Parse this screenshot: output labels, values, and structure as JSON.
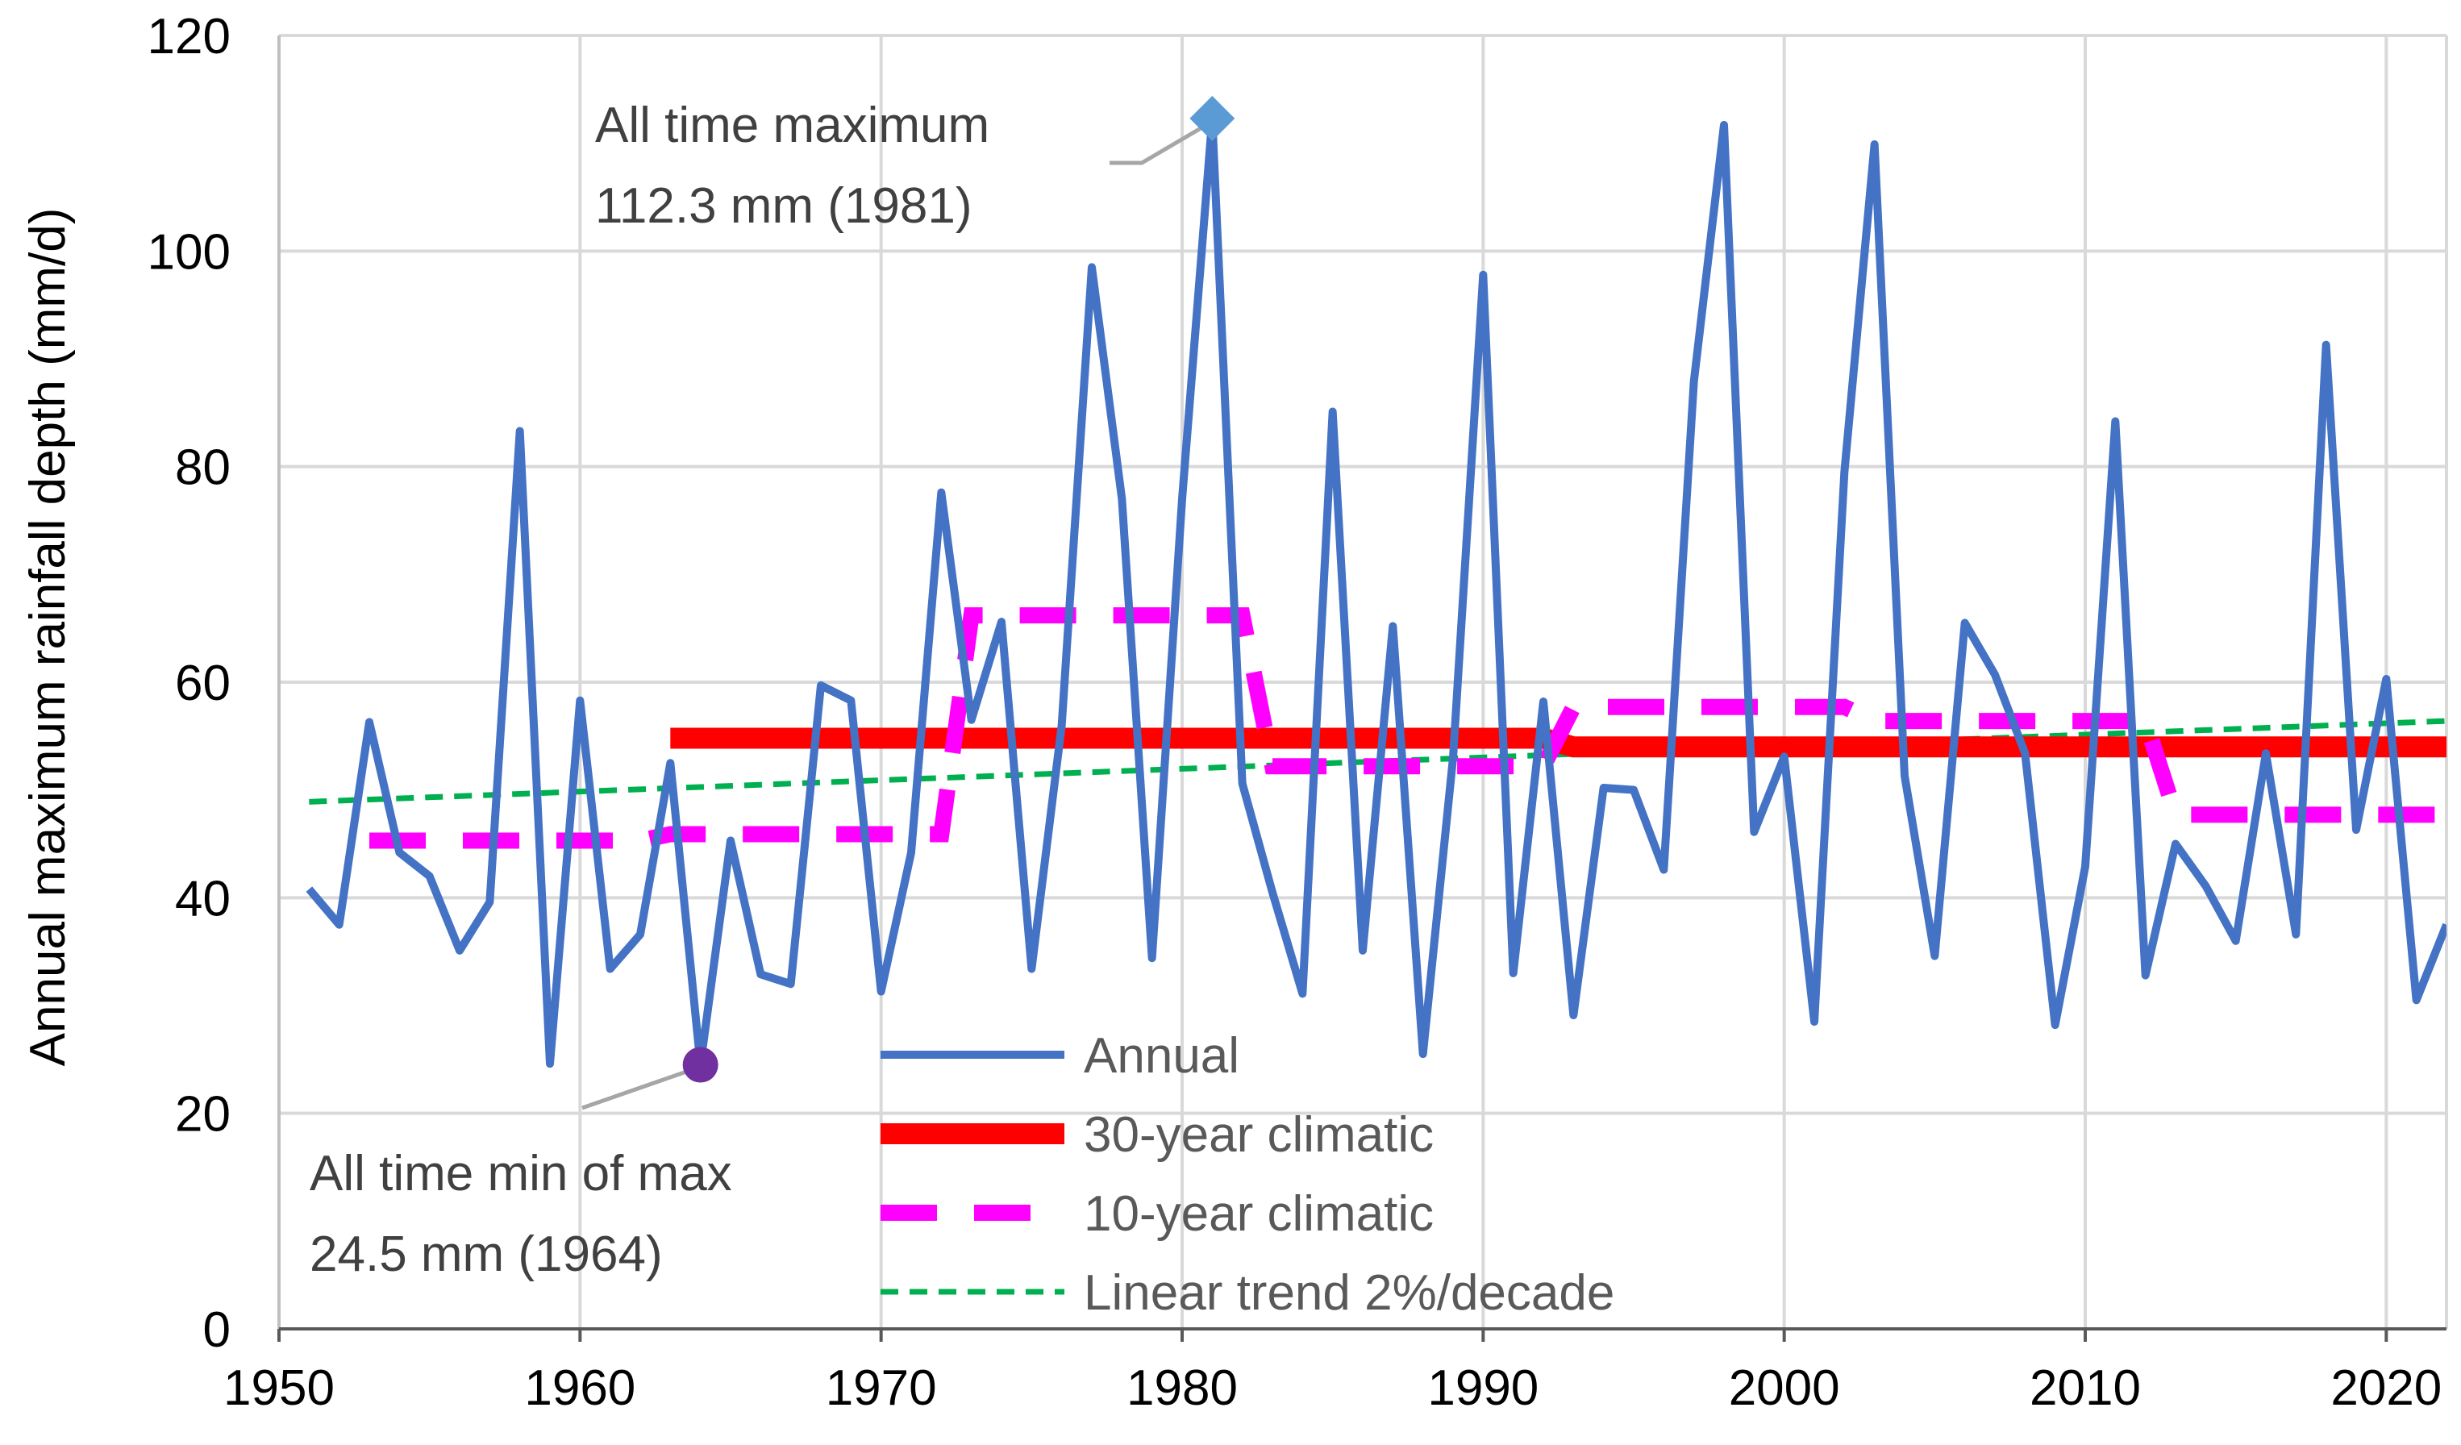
{
  "chart_data": {
    "type": "line",
    "title": "",
    "xlabel": "",
    "ylabel": "Annual maximum  rainfall depth (mm/d)",
    "xlim": [
      1950,
      2022
    ],
    "ylim": [
      0,
      120
    ],
    "x_ticks": [
      "1950",
      "1960",
      "1970",
      "1980",
      "1990",
      "2000",
      "2010",
      "2020"
    ],
    "y_ticks": [
      "0",
      "20",
      "40",
      "60",
      "80",
      "100",
      "120"
    ],
    "grid": true,
    "legend_position": "bottom-center",
    "colors": {
      "annual": "#4472C4",
      "climatic30": "#FF0000",
      "climatic10": "#FF00FF",
      "trend": "#00B050",
      "max_marker": "#5B9BD5",
      "min_marker": "#7030A0",
      "grid": "#D9D9D9",
      "leader": "#A6A6A6"
    },
    "series": [
      {
        "name": "Annual",
        "x": [
          1951,
          1952,
          1953,
          1954,
          1955,
          1956,
          1957,
          1958,
          1959,
          1960,
          1961,
          1962,
          1963,
          1964,
          1965,
          1966,
          1967,
          1968,
          1969,
          1970,
          1971,
          1972,
          1973,
          1974,
          1975,
          1976,
          1977,
          1978,
          1979,
          1980,
          1981,
          1982,
          1983,
          1984,
          1985,
          1986,
          1987,
          1988,
          1989,
          1990,
          1991,
          1992,
          1993,
          1994,
          1995,
          1996,
          1997,
          1998,
          1999,
          2000,
          2001,
          2002,
          2003,
          2004,
          2005,
          2006,
          2007,
          2008,
          2009,
          2010,
          2011,
          2012,
          2013,
          2014,
          2015,
          2016,
          2017,
          2018,
          2019,
          2020,
          2021,
          2022
        ],
        "values": [
          40.8,
          37.5,
          56.3,
          44.2,
          42.0,
          35.1,
          39.6,
          83.3,
          24.6,
          58.3,
          33.4,
          36.6,
          52.5,
          24.5,
          45.3,
          32.9,
          32.0,
          59.7,
          58.3,
          31.3,
          44.2,
          77.6,
          56.5,
          65.6,
          33.4,
          56.0,
          98.5,
          77.0,
          34.4,
          77.0,
          112.3,
          50.6,
          40.5,
          31.1,
          85.1,
          35.1,
          65.2,
          25.5,
          53.0,
          97.8,
          33.0,
          58.2,
          29.1,
          50.2,
          50.0,
          42.6,
          87.9,
          111.7,
          46.1,
          53.1,
          28.5,
          79.5,
          109.9,
          51.3,
          34.6,
          65.5,
          60.7,
          53.4,
          28.2,
          42.9,
          84.2,
          32.8,
          45.0,
          41.1,
          36.0,
          53.4,
          36.6,
          91.3,
          46.3,
          60.3,
          30.5,
          37.5
        ]
      },
      {
        "name": "30-year climatic",
        "segments": [
          {
            "x0": 1963,
            "x1": 1992,
            "value": 54.8
          },
          {
            "x0": 1993,
            "x1": 2022,
            "value": 54.0
          }
        ]
      },
      {
        "name": "10-year climatic",
        "segments": [
          {
            "x0": 1953,
            "x1": 1962,
            "value": 45.3
          },
          {
            "x0": 1963,
            "x1": 1972,
            "value": 45.9
          },
          {
            "x0": 1973,
            "x1": 1982,
            "value": 66.2
          },
          {
            "x0": 1983,
            "x1": 1992,
            "value": 52.2
          },
          {
            "x0": 1993,
            "x1": 2002,
            "value": 57.7
          },
          {
            "x0": 2003,
            "x1": 2012,
            "value": 56.4
          },
          {
            "x0": 2013,
            "x1": 2022,
            "value": 47.7
          }
        ]
      },
      {
        "name": "Linear trend 2%/decade",
        "x": [
          1951,
          2022
        ],
        "values": [
          48.9,
          56.4
        ]
      }
    ],
    "annotations": {
      "max": {
        "year": 1981,
        "value": 112.3,
        "line1": "All time maximum",
        "line2": "112.3 mm (1981)"
      },
      "min": {
        "year": 1964,
        "value": 24.5,
        "line1": "All time min of max",
        "line2": "24.5 mm (1964)"
      }
    }
  }
}
